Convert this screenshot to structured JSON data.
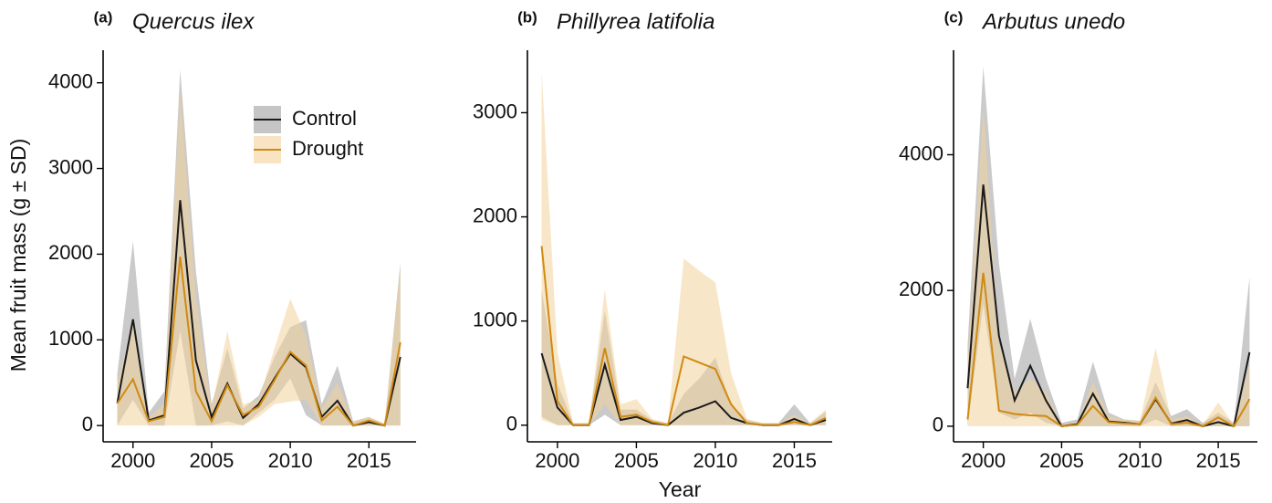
{
  "chart_data": [
    {
      "type": "line",
      "panel": "(a)",
      "title": "Quercus ilex",
      "ylabel": "Mean fruit mass (g ± SD)",
      "legend": "top-right",
      "x": [
        1999,
        2000,
        2001,
        2002,
        2003,
        2004,
        2005,
        2006,
        2007,
        2008,
        2009,
        2010,
        2011,
        2012,
        2013,
        2014,
        2015,
        2016,
        2017
      ],
      "xlim": [
        1998.1,
        2018
      ],
      "xticks": [
        2000,
        2005,
        2010,
        2015
      ],
      "ylim": [
        -190,
        4380
      ],
      "yticks": [
        0,
        1000,
        2000,
        3000,
        4000
      ],
      "series": [
        {
          "name": "Control",
          "color": "#1a1a1a",
          "band_color": "#9e9e9e",
          "values": [
            260,
            1240,
            60,
            120,
            2630,
            760,
            100,
            490,
            90,
            250,
            550,
            840,
            680,
            100,
            290,
            0,
            40,
            0,
            800
          ],
          "upper": [
            600,
            2150,
            150,
            400,
            4150,
            1800,
            250,
            900,
            200,
            350,
            800,
            1150,
            1230,
            250,
            700,
            50,
            100,
            20,
            1900
          ],
          "lower": [
            0,
            300,
            0,
            0,
            1100,
            0,
            0,
            50,
            0,
            150,
            300,
            550,
            120,
            0,
            0,
            0,
            0,
            0,
            0
          ]
        },
        {
          "name": "Drought",
          "color": "#d08a10",
          "band_color": "#f3d29a",
          "values": [
            260,
            540,
            50,
            100,
            1970,
            400,
            50,
            470,
            120,
            220,
            530,
            860,
            700,
            60,
            220,
            0,
            60,
            0,
            970
          ],
          "upper": [
            500,
            1200,
            100,
            250,
            3900,
            1500,
            200,
            1100,
            250,
            300,
            900,
            1480,
            1050,
            200,
            500,
            50,
            100,
            20,
            1850
          ],
          "lower": [
            0,
            0,
            0,
            0,
            0,
            0,
            0,
            0,
            0,
            100,
            250,
            280,
            300,
            0,
            0,
            0,
            0,
            0,
            0
          ]
        }
      ]
    },
    {
      "type": "line",
      "panel": "(b)",
      "title": "Phillyrea latifolia",
      "xlabel": "Year",
      "x": [
        1999,
        2000,
        2001,
        2002,
        2003,
        2004,
        2005,
        2006,
        2007,
        2008,
        2009,
        2010,
        2011,
        2012,
        2013,
        2014,
        2015,
        2016,
        2017
      ],
      "xlim": [
        1998.1,
        2017.4
      ],
      "xticks": [
        2000,
        2005,
        2010,
        2015
      ],
      "ylim": [
        -160,
        3600
      ],
      "yticks": [
        0,
        1000,
        2000,
        3000
      ],
      "series": [
        {
          "color": "#1a1a1a",
          "band_color": "#9e9e9e",
          "values": [
            690,
            170,
            0,
            0,
            580,
            50,
            80,
            20,
            0,
            120,
            170,
            230,
            70,
            20,
            0,
            0,
            60,
            0,
            50
          ],
          "upper": [
            1300,
            400,
            20,
            20,
            1100,
            150,
            150,
            50,
            20,
            300,
            450,
            650,
            200,
            50,
            20,
            20,
            200,
            20,
            130
          ],
          "lower": [
            80,
            0,
            0,
            0,
            100,
            0,
            0,
            0,
            0,
            0,
            0,
            0,
            0,
            0,
            0,
            0,
            0,
            0,
            0
          ]
        },
        {
          "color": "#d08a10",
          "band_color": "#f3d29a",
          "values": [
            1720,
            230,
            0,
            0,
            740,
            80,
            100,
            30,
            0,
            660,
            600,
            540,
            200,
            20,
            0,
            0,
            30,
            0,
            70
          ],
          "upper": [
            3400,
            700,
            20,
            20,
            1300,
            200,
            250,
            60,
            20,
            1600,
            1480,
            1370,
            500,
            60,
            20,
            20,
            100,
            20,
            150
          ],
          "lower": [
            50,
            0,
            0,
            0,
            200,
            0,
            0,
            0,
            0,
            0,
            0,
            0,
            0,
            0,
            0,
            0,
            0,
            0,
            0
          ]
        }
      ]
    },
    {
      "type": "line",
      "panel": "(c)",
      "title": "Arbutus unedo",
      "x": [
        1999,
        2000,
        2001,
        2002,
        2003,
        2004,
        2005,
        2006,
        2007,
        2008,
        2009,
        2010,
        2011,
        2012,
        2013,
        2014,
        2015,
        2016,
        2017
      ],
      "xlim": [
        1998.1,
        2017.5
      ],
      "xticks": [
        2000,
        2005,
        2010,
        2015
      ],
      "ylim": [
        -230,
        5540
      ],
      "yticks": [
        0,
        2000,
        4000
      ],
      "series": [
        {
          "color": "#1a1a1a",
          "band_color": "#9e9e9e",
          "values": [
            560,
            3560,
            1330,
            380,
            890,
            380,
            0,
            30,
            480,
            70,
            50,
            30,
            400,
            40,
            90,
            0,
            60,
            0,
            1090
          ],
          "upper": [
            1200,
            5300,
            2400,
            700,
            1580,
            700,
            50,
            100,
            950,
            200,
            100,
            80,
            650,
            150,
            250,
            50,
            200,
            50,
            2200
          ],
          "lower": [
            0,
            1800,
            200,
            100,
            200,
            50,
            0,
            0,
            0,
            0,
            0,
            0,
            100,
            0,
            0,
            0,
            0,
            0,
            0
          ]
        },
        {
          "color": "#d08a10",
          "band_color": "#f3d29a",
          "values": [
            100,
            2260,
            230,
            180,
            160,
            150,
            0,
            20,
            300,
            60,
            40,
            30,
            420,
            30,
            50,
            0,
            130,
            0,
            400
          ],
          "upper": [
            900,
            4700,
            1200,
            500,
            700,
            500,
            30,
            60,
            650,
            150,
            100,
            80,
            1150,
            100,
            150,
            20,
            350,
            20,
            900
          ],
          "lower": [
            0,
            0,
            0,
            0,
            0,
            0,
            0,
            0,
            0,
            0,
            0,
            0,
            0,
            0,
            0,
            0,
            0,
            0,
            0
          ]
        }
      ]
    }
  ]
}
